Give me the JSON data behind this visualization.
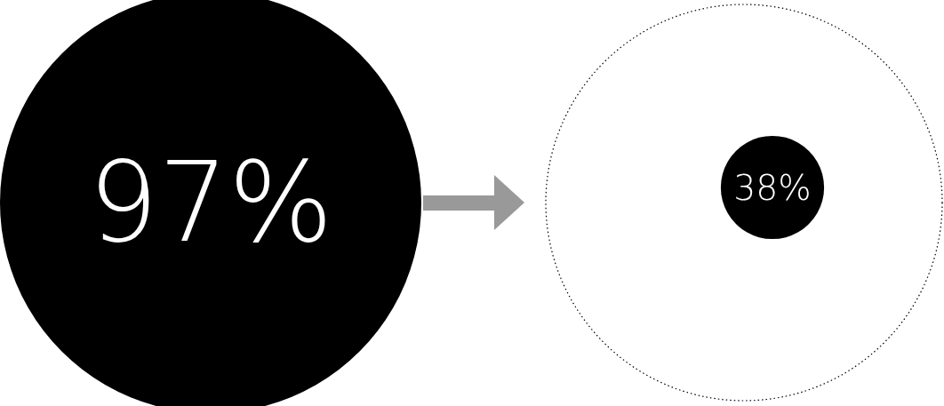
{
  "chart_data": {
    "type": "other",
    "values": [
      97,
      38
    ],
    "value_labels": [
      "97%",
      "38%"
    ],
    "colors": [
      "#000000",
      "#000000"
    ]
  }
}
